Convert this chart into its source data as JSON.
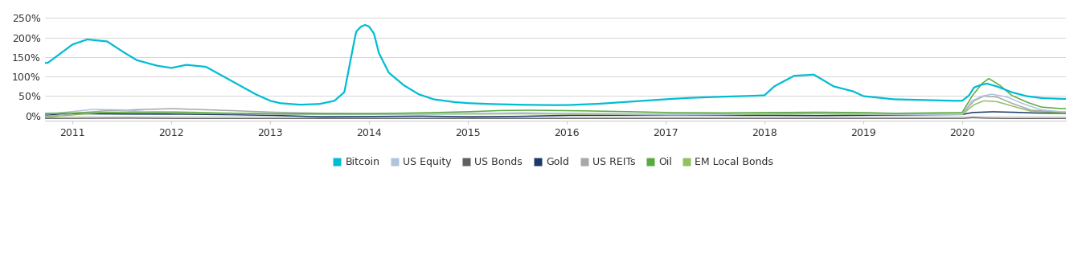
{
  "background_color": "#ffffff",
  "series_colors": {
    "Bitcoin": "#00bcd4",
    "US Equity": "#b0c4de",
    "US Bonds": "#606060",
    "Gold": "#1a3a6b",
    "US REITs": "#a8a8a8",
    "Oil": "#5aab3f",
    "EM Local Bonds": "#90c060"
  },
  "series_linewidths": {
    "Bitcoin": 1.6,
    "US Equity": 1.1,
    "US Bonds": 1.1,
    "Gold": 1.1,
    "US REITs": 1.1,
    "Oil": 1.1,
    "EM Local Bonds": 1.1
  },
  "yticks": [
    0.0,
    0.5,
    1.0,
    1.5,
    2.0,
    2.5
  ],
  "ytick_labels": [
    "0%",
    "50%",
    "100%",
    "150%",
    "200%",
    "250%"
  ],
  "ylim": [
    -0.12,
    2.65
  ],
  "xlim_start": 2010.72,
  "xlim_end": 2021.05,
  "xticks": [
    2011,
    2012,
    2013,
    2014,
    2015,
    2016,
    2017,
    2018,
    2019,
    2020
  ],
  "xtick_labels": [
    "2011",
    "2012",
    "2013",
    "2014",
    "2015",
    "2016",
    "2017",
    "2018",
    "2019",
    "2020"
  ],
  "legend_items": [
    "Bitcoin",
    "US Equity",
    "US Bonds",
    "Gold",
    "US REITs",
    "Oil",
    "EM Local Bonds"
  ],
  "grid_color": "#d0d0d0",
  "axis_color": "#cccccc",
  "font_color": "#333333",
  "label_fontsize": 9,
  "legend_fontsize": 9,
  "bitcoin": {
    "times": [
      2010.75,
      2011.0,
      2011.15,
      2011.35,
      2011.5,
      2011.65,
      2011.85,
      2012.0,
      2012.15,
      2012.35,
      2012.6,
      2012.85,
      2013.0,
      2013.1,
      2013.2,
      2013.3,
      2013.5,
      2013.65,
      2013.75,
      2013.82,
      2013.87,
      2013.92,
      2013.96,
      2014.0,
      2014.05,
      2014.1,
      2014.2,
      2014.35,
      2014.5,
      2014.65,
      2014.85,
      2015.0,
      2015.2,
      2015.5,
      2015.8,
      2016.0,
      2016.3,
      2016.6,
      2016.9,
      2017.0,
      2017.2,
      2017.5,
      2017.8,
      2018.0,
      2018.1,
      2018.3,
      2018.5,
      2018.7,
      2018.9,
      2019.0,
      2019.3,
      2019.6,
      2019.9,
      2020.0,
      2020.07,
      2020.12,
      2020.18,
      2020.25,
      2020.35,
      2020.5,
      2020.65,
      2020.8,
      2021.0
    ],
    "vals": [
      1.35,
      1.82,
      1.95,
      1.9,
      1.65,
      1.42,
      1.28,
      1.22,
      1.3,
      1.25,
      0.9,
      0.55,
      0.38,
      0.32,
      0.3,
      0.28,
      0.3,
      0.38,
      0.6,
      1.52,
      2.15,
      2.28,
      2.32,
      2.28,
      2.1,
      1.6,
      1.1,
      0.78,
      0.55,
      0.42,
      0.35,
      0.32,
      0.3,
      0.28,
      0.27,
      0.27,
      0.3,
      0.35,
      0.4,
      0.42,
      0.45,
      0.48,
      0.5,
      0.52,
      0.75,
      1.02,
      1.05,
      0.75,
      0.62,
      0.5,
      0.42,
      0.4,
      0.38,
      0.38,
      0.52,
      0.72,
      0.78,
      0.82,
      0.75,
      0.6,
      0.5,
      0.45,
      0.43
    ]
  },
  "us_equity": {
    "times": [
      2010.75,
      2011.2,
      2011.5,
      2011.8,
      2012.0,
      2012.5,
      2013.0,
      2013.5,
      2014.0,
      2014.5,
      2015.0,
      2015.5,
      2016.0,
      2016.5,
      2017.0,
      2017.5,
      2018.0,
      2018.3,
      2018.6,
      2019.0,
      2019.5,
      2020.0,
      2020.1,
      2020.2,
      2020.3,
      2020.45,
      2020.6,
      2020.8,
      2021.0
    ],
    "vals": [
      0.04,
      0.16,
      0.15,
      0.09,
      0.07,
      0.05,
      0.04,
      0.04,
      0.04,
      0.04,
      0.05,
      0.07,
      0.06,
      0.04,
      0.03,
      0.03,
      0.06,
      0.08,
      0.07,
      0.04,
      0.03,
      0.04,
      0.38,
      0.5,
      0.55,
      0.48,
      0.32,
      0.15,
      0.1
    ]
  },
  "us_bonds": {
    "times": [
      2010.75,
      2011.5,
      2012.0,
      2013.0,
      2014.0,
      2015.0,
      2016.0,
      2017.0,
      2018.0,
      2019.0,
      2020.0,
      2020.1,
      2020.2,
      2020.4,
      2021.0
    ],
    "vals": [
      -0.07,
      -0.06,
      -0.07,
      -0.07,
      -0.07,
      -0.07,
      -0.07,
      -0.07,
      -0.07,
      -0.07,
      -0.07,
      -0.05,
      -0.06,
      -0.07,
      -0.07
    ]
  },
  "gold": {
    "times": [
      2010.75,
      2011.0,
      2011.5,
      2012.0,
      2012.5,
      2013.0,
      2013.5,
      2014.0,
      2014.5,
      2015.0,
      2015.5,
      2016.0,
      2016.5,
      2017.0,
      2017.5,
      2018.0,
      2018.5,
      2019.0,
      2019.5,
      2020.0,
      2020.1,
      2020.3,
      2020.5,
      2020.7,
      2021.0
    ],
    "vals": [
      0.02,
      0.05,
      0.04,
      0.04,
      0.03,
      0.01,
      -0.03,
      -0.02,
      -0.01,
      -0.03,
      -0.02,
      0.01,
      0.01,
      0.02,
      0.01,
      0.01,
      0.0,
      0.01,
      0.02,
      0.03,
      0.08,
      0.1,
      0.09,
      0.07,
      0.06
    ]
  },
  "us_reits": {
    "times": [
      2010.75,
      2011.0,
      2011.3,
      2011.6,
      2012.0,
      2012.5,
      2013.0,
      2013.5,
      2014.0,
      2014.5,
      2015.0,
      2015.5,
      2016.0,
      2016.5,
      2017.0,
      2017.5,
      2018.0,
      2018.5,
      2019.0,
      2019.5,
      2020.0,
      2020.12,
      2020.22,
      2020.35,
      2020.5,
      2020.7,
      2021.0
    ],
    "vals": [
      -0.02,
      0.06,
      0.12,
      0.15,
      0.18,
      0.14,
      0.09,
      0.06,
      0.05,
      0.05,
      0.06,
      0.07,
      0.06,
      0.05,
      0.04,
      0.04,
      0.07,
      0.08,
      0.06,
      0.04,
      0.04,
      0.38,
      0.5,
      0.48,
      0.32,
      0.14,
      0.09
    ]
  },
  "oil": {
    "times": [
      2010.75,
      2011.0,
      2011.5,
      2012.0,
      2012.5,
      2013.0,
      2013.5,
      2014.0,
      2014.5,
      2015.0,
      2015.3,
      2015.6,
      2016.0,
      2016.5,
      2017.0,
      2017.5,
      2018.0,
      2018.5,
      2019.0,
      2019.3,
      2019.6,
      2020.0,
      2020.1,
      2020.2,
      2020.27,
      2020.38,
      2020.5,
      2020.65,
      2020.8,
      2021.0
    ],
    "vals": [
      0.06,
      0.07,
      0.08,
      0.07,
      0.06,
      0.05,
      0.05,
      0.05,
      0.07,
      0.1,
      0.13,
      0.14,
      0.13,
      0.11,
      0.08,
      0.07,
      0.08,
      0.09,
      0.08,
      0.06,
      0.07,
      0.08,
      0.5,
      0.82,
      0.95,
      0.78,
      0.52,
      0.35,
      0.22,
      0.18
    ]
  },
  "em_local_bonds": {
    "times": [
      2010.75,
      2011.0,
      2011.3,
      2011.6,
      2012.0,
      2012.5,
      2013.0,
      2013.5,
      2014.0,
      2014.5,
      2015.0,
      2015.5,
      2016.0,
      2016.5,
      2017.0,
      2017.5,
      2018.0,
      2018.5,
      2019.0,
      2019.5,
      2020.0,
      2020.12,
      2020.22,
      2020.35,
      2020.5,
      2020.7,
      2021.0
    ],
    "vals": [
      -0.04,
      0.02,
      0.08,
      0.1,
      0.1,
      0.07,
      0.04,
      0.03,
      0.03,
      0.04,
      0.04,
      0.05,
      0.04,
      0.03,
      0.02,
      0.02,
      0.04,
      0.05,
      0.03,
      0.03,
      0.03,
      0.28,
      0.38,
      0.36,
      0.25,
      0.11,
      0.08
    ]
  }
}
